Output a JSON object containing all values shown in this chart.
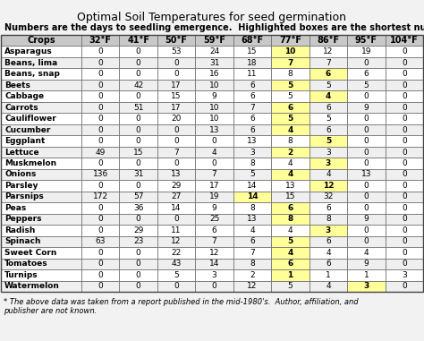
{
  "title": "Optimal Soil Temperatures for seed germination",
  "subtitle": "Numbers are the days to seedling emergence.  Highlighted boxes are the shortest number of day",
  "footnote": "* The above data was taken from a report published in the mid-1980's.  Author, affiliation, and\npublisher are not known.",
  "columns": [
    "Crops",
    "32°F",
    "41°F",
    "50°F",
    "59°F",
    "68°F",
    "77°F",
    "86°F",
    "95°F",
    "104°F"
  ],
  "rows": [
    [
      "Asparagus",
      0,
      0,
      53,
      24,
      15,
      10,
      12,
      19,
      0
    ],
    [
      "Beans, lima",
      0,
      0,
      0,
      31,
      18,
      7,
      7,
      0,
      0
    ],
    [
      "Beans, snap",
      0,
      0,
      0,
      16,
      11,
      8,
      6,
      6,
      0
    ],
    [
      "Beets",
      0,
      42,
      17,
      10,
      6,
      5,
      5,
      5,
      0
    ],
    [
      "Cabbage",
      0,
      0,
      15,
      9,
      6,
      5,
      4,
      0,
      0
    ],
    [
      "Carrots",
      0,
      51,
      17,
      10,
      7,
      6,
      6,
      9,
      0
    ],
    [
      "Cauliflower",
      0,
      0,
      20,
      10,
      6,
      5,
      5,
      0,
      0
    ],
    [
      "Cucumber",
      0,
      0,
      0,
      13,
      6,
      4,
      6,
      0,
      0
    ],
    [
      "Eggplant",
      0,
      0,
      0,
      0,
      13,
      8,
      5,
      0,
      0
    ],
    [
      "Lettuce",
      49,
      15,
      7,
      4,
      3,
      2,
      3,
      0,
      0
    ],
    [
      "Muskmelon",
      0,
      0,
      0,
      0,
      8,
      4,
      3,
      0,
      0
    ],
    [
      "Onions",
      136,
      31,
      13,
      7,
      5,
      4,
      4,
      13,
      0
    ],
    [
      "Parsley",
      0,
      0,
      29,
      17,
      14,
      13,
      12,
      0,
      0
    ],
    [
      "Parsnips",
      172,
      57,
      27,
      19,
      14,
      15,
      32,
      0,
      0
    ],
    [
      "Peas",
      0,
      36,
      14,
      9,
      8,
      6,
      6,
      0,
      0
    ],
    [
      "Peppers",
      0,
      0,
      0,
      25,
      13,
      8,
      8,
      9,
      0
    ],
    [
      "Radish",
      0,
      29,
      11,
      6,
      4,
      4,
      3,
      0,
      0
    ],
    [
      "Spinach",
      63,
      23,
      12,
      7,
      6,
      5,
      6,
      0,
      0
    ],
    [
      "Sweet Corn",
      0,
      0,
      22,
      12,
      7,
      4,
      4,
      4,
      0
    ],
    [
      "Tomatoes",
      0,
      0,
      43,
      14,
      8,
      6,
      6,
      9,
      0
    ],
    [
      "Turnips",
      0,
      0,
      5,
      3,
      2,
      1,
      1,
      1,
      3
    ],
    [
      "Watermelon",
      0,
      0,
      0,
      0,
      12,
      5,
      4,
      3,
      0
    ]
  ],
  "highlight_yellow": "#FFFF99",
  "highlight_map": {
    "0": 6,
    "1": 6,
    "2": 7,
    "3": 6,
    "4": 7,
    "5": 6,
    "6": 6,
    "7": 6,
    "8": 7,
    "9": 6,
    "10": 7,
    "11": 6,
    "12": 7,
    "13": 5,
    "14": 6,
    "15": 6,
    "16": 7,
    "17": 6,
    "18": 6,
    "19": 6,
    "20": 6,
    "21": 8
  },
  "bg_color": "#F2F2F2",
  "title_fontsize": 9,
  "subtitle_fontsize": 7,
  "cell_fontsize": 6.5,
  "header_fontsize": 7,
  "footnote_fontsize": 6
}
